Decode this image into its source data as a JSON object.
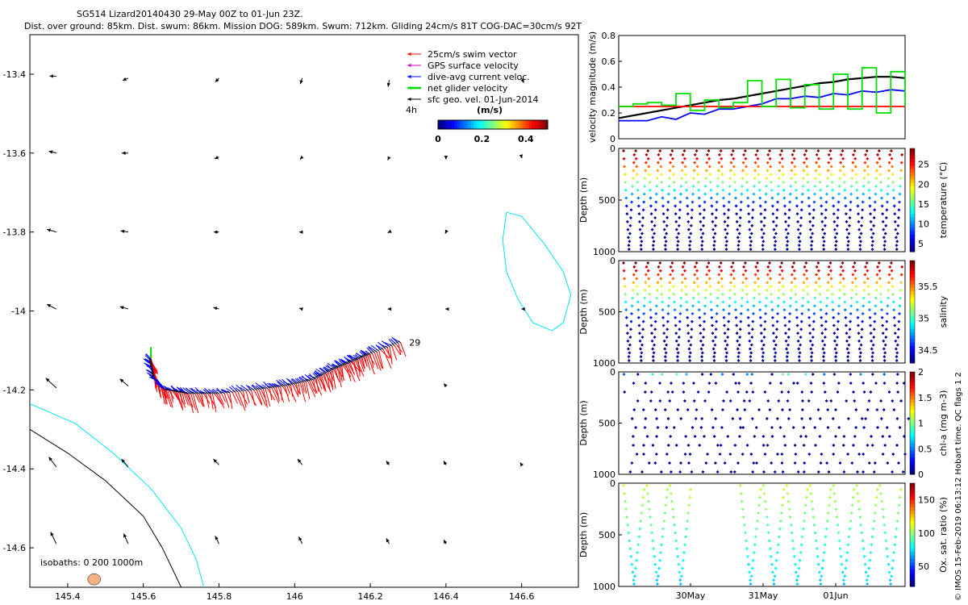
{
  "title": {
    "line1": "SG514 Lizard20140430 29-May 00Z to 01-Jun 23Z.",
    "line2": "Dist. over ground: 85km. Dist. swum: 86km. Mission DOG: 589km. Swum: 712km. Gliding 24cm/s 81T COG-DAC=30cm/s 92T"
  },
  "credit": "© IMOS 15-Feb-2019 06:13:12 Hobart time. QC flags 1  2",
  "colors": {
    "swim": "#ff0000",
    "gps": "#d000d0",
    "dac": "#0000ff",
    "net": "#00e000",
    "geo": "#000000",
    "isobath200": "#000000",
    "isobath1000": "#00e5ee",
    "reef": "#f4b183"
  },
  "chart_data": [
    {
      "type": "map",
      "name": "glider-track-map",
      "xlim": [
        145.3,
        146.75
      ],
      "ylim": [
        -14.7,
        -13.3
      ],
      "xticks": [
        145.4,
        145.6,
        145.8,
        146,
        146.2,
        146.4,
        146.6
      ],
      "xtick_labels": [
        "145.4",
        "145.6",
        "145.8",
        "146",
        "146.2",
        "146.4",
        "146.6"
      ],
      "yticks": [
        -13.4,
        -13.6,
        -13.8,
        -14,
        -14.2,
        -14.4,
        -14.6
      ],
      "ytick_labels": [
        "-13.4",
        "-13.6",
        "-13.8",
        "-14",
        "-14.2",
        "-14.4",
        "-14.6"
      ],
      "legend": {
        "entries": [
          {
            "label": "25cm/s swim vector",
            "key": "swim"
          },
          {
            "label": "GPS surface velocity",
            "key": "gps"
          },
          {
            "label": "dive-avg current veloc.",
            "key": "dac"
          },
          {
            "label": "net glider velocity",
            "key": "net"
          },
          {
            "label": "sfc geo. vel. 01-Jun-2014",
            "key": "geo"
          }
        ],
        "placement": "top-right"
      },
      "colorbar": {
        "label": "(m/s)",
        "prefix": "4h",
        "ticks": [
          "0",
          "0.2",
          "0.4"
        ],
        "range": [
          0,
          0.5
        ]
      },
      "isobaths_label": "isobaths: 0   200  1000m",
      "end_label": "29",
      "track": [
        [
          145.62,
          -14.12
        ],
        [
          145.63,
          -14.17
        ],
        [
          145.66,
          -14.2
        ],
        [
          145.72,
          -14.21
        ],
        [
          145.8,
          -14.21
        ],
        [
          145.9,
          -14.2
        ],
        [
          145.98,
          -14.19
        ],
        [
          146.05,
          -14.175
        ],
        [
          146.1,
          -14.15
        ],
        [
          146.15,
          -14.13
        ],
        [
          146.2,
          -14.11
        ],
        [
          146.28,
          -14.08
        ]
      ],
      "geo_vectors": [
        [
          145.37,
          -13.405,
          -0.018,
          0.0
        ],
        [
          145.56,
          -13.41,
          -0.015,
          -0.006
        ],
        [
          145.8,
          -13.41,
          -0.01,
          -0.01
        ],
        [
          146.02,
          -13.41,
          -0.005,
          -0.015
        ],
        [
          146.25,
          -13.415,
          -0.003,
          -0.017
        ],
        [
          146.6,
          -13.41,
          0.006,
          -0.012
        ],
        [
          145.37,
          -13.6,
          -0.02,
          0.005
        ],
        [
          145.56,
          -13.6,
          -0.017,
          0.0
        ],
        [
          145.8,
          -13.61,
          -0.012,
          -0.004
        ],
        [
          146.02,
          -13.61,
          -0.006,
          -0.006
        ],
        [
          146.25,
          -13.61,
          -0.004,
          -0.008
        ],
        [
          146.4,
          -13.61,
          0.0,
          -0.006
        ],
        [
          146.6,
          -13.61,
          0.001,
          -0.003
        ],
        [
          145.37,
          -13.8,
          -0.025,
          0.007
        ],
        [
          145.56,
          -13.8,
          -0.02,
          0.003
        ],
        [
          145.8,
          -13.8,
          -0.014,
          0.0
        ],
        [
          146.02,
          -13.8,
          -0.008,
          0.0
        ],
        [
          146.25,
          -13.8,
          -0.004,
          -0.002
        ],
        [
          146.4,
          -13.8,
          -0.002,
          -0.004
        ],
        [
          145.37,
          -13.995,
          -0.025,
          0.012
        ],
        [
          145.56,
          -13.995,
          -0.022,
          0.006
        ],
        [
          145.8,
          -13.995,
          -0.015,
          0.004
        ],
        [
          146.02,
          -13.995,
          -0.008,
          0.002
        ],
        [
          146.25,
          -13.995,
          -0.004,
          0.0
        ],
        [
          146.4,
          -13.995,
          -0.002,
          0.0
        ],
        [
          146.6,
          -13.995,
          -0.001,
          0.0
        ],
        [
          145.37,
          -14.195,
          -0.028,
          0.025
        ],
        [
          145.56,
          -14.19,
          -0.022,
          0.018
        ],
        [
          146.4,
          -14.19,
          -0.006,
          0.006
        ],
        [
          145.37,
          -14.395,
          -0.02,
          0.025
        ],
        [
          145.56,
          -14.395,
          -0.018,
          0.02
        ],
        [
          145.8,
          -14.39,
          -0.015,
          0.015
        ],
        [
          146.02,
          -14.39,
          -0.012,
          0.015
        ],
        [
          146.25,
          -14.39,
          -0.008,
          0.01
        ],
        [
          146.4,
          -14.39,
          -0.006,
          0.01
        ],
        [
          146.6,
          -14.39,
          -0.004,
          0.006
        ],
        [
          145.37,
          -14.59,
          -0.015,
          0.03
        ],
        [
          145.56,
          -14.59,
          -0.012,
          0.026
        ],
        [
          145.8,
          -14.59,
          -0.01,
          0.02
        ],
        [
          146.02,
          -14.59,
          -0.009,
          0.018
        ],
        [
          146.25,
          -14.59,
          -0.008,
          0.014
        ],
        [
          146.4,
          -14.59,
          -0.006,
          0.01
        ]
      ],
      "isobath_200": [
        [
          145.3,
          -14.3
        ],
        [
          145.4,
          -14.36
        ],
        [
          145.5,
          -14.43
        ],
        [
          145.6,
          -14.52
        ],
        [
          145.65,
          -14.6
        ],
        [
          145.7,
          -14.7
        ]
      ],
      "isobath_1000": [
        [
          145.3,
          -14.235
        ],
        [
          145.42,
          -14.285
        ],
        [
          145.52,
          -14.36
        ],
        [
          145.62,
          -14.45
        ],
        [
          145.7,
          -14.55
        ],
        [
          145.74,
          -14.63
        ],
        [
          145.76,
          -14.7
        ]
      ],
      "reef_1000": [
        [
          146.56,
          -13.75
        ],
        [
          146.6,
          -13.76
        ],
        [
          146.66,
          -13.83
        ],
        [
          146.71,
          -13.9
        ],
        [
          146.73,
          -13.96
        ],
        [
          146.71,
          -14.03
        ],
        [
          146.68,
          -14.05
        ],
        [
          146.63,
          -14.03
        ],
        [
          146.59,
          -13.97
        ],
        [
          146.56,
          -13.9
        ],
        [
          146.55,
          -13.82
        ],
        [
          146.56,
          -13.75
        ]
      ],
      "island": [
        145.47,
        -14.68
      ]
    },
    {
      "type": "line",
      "name": "velocity-panel",
      "ylabel": "velocity magnitude (m/s)",
      "ylim": [
        0,
        0.8
      ],
      "yticks": [
        "0",
        "0.2",
        "0.4",
        "0.6",
        "0.8"
      ],
      "x": [
        0,
        0.05,
        0.1,
        0.15,
        0.2,
        0.25,
        0.3,
        0.35,
        0.4,
        0.45,
        0.5,
        0.55,
        0.6,
        0.65,
        0.7,
        0.75,
        0.8,
        0.85,
        0.9,
        0.95,
        1.0
      ],
      "series": [
        {
          "name": "sfc geo",
          "key": "geo",
          "values": [
            0.16,
            0.18,
            0.2,
            0.22,
            0.24,
            0.26,
            0.28,
            0.3,
            0.31,
            0.33,
            0.35,
            0.37,
            0.39,
            0.41,
            0.43,
            0.44,
            0.46,
            0.47,
            0.48,
            0.48,
            0.47
          ]
        },
        {
          "name": "dive-avg",
          "key": "dac",
          "values": [
            0.14,
            0.14,
            0.14,
            0.17,
            0.15,
            0.2,
            0.19,
            0.23,
            0.23,
            0.25,
            0.27,
            0.31,
            0.31,
            0.33,
            0.32,
            0.35,
            0.34,
            0.37,
            0.36,
            0.38,
            0.37
          ]
        },
        {
          "name": "swim",
          "key": "swim",
          "values": [
            0.25,
            0.25,
            0.25,
            0.25,
            0.25,
            0.25,
            0.25,
            0.25,
            0.25,
            0.25,
            0.25,
            0.25,
            0.25,
            0.25,
            0.25,
            0.25,
            0.25,
            0.25,
            0.25,
            0.25,
            0.25
          ]
        },
        {
          "name": "net glider",
          "key": "net",
          "values": [
            0.25,
            0.27,
            0.28,
            0.26,
            0.35,
            0.22,
            0.3,
            0.24,
            0.28,
            0.45,
            0.25,
            0.46,
            0.24,
            0.42,
            0.23,
            0.5,
            0.23,
            0.55,
            0.2,
            0.52,
            0.25
          ]
        }
      ]
    },
    {
      "type": "scatter",
      "name": "temperature-panel",
      "ylabel": "Depth (m)",
      "cbar_label": "temperature (°C)",
      "yticks": [
        "0",
        "500",
        "1000"
      ],
      "cbar_ticks": [
        "25",
        "20",
        "15",
        "10",
        "5"
      ],
      "cbar_range": [
        3,
        29
      ],
      "profiles": 23,
      "max_depth": 1000,
      "top": 28,
      "bottom": 4
    },
    {
      "type": "scatter",
      "name": "salinity-panel",
      "ylabel": "Depth (m)",
      "cbar_label": "salinity",
      "yticks": [
        "0",
        "500",
        "1000"
      ],
      "cbar_ticks": [
        "35.5",
        "35",
        "34.5"
      ],
      "cbar_range": [
        34.3,
        35.9
      ],
      "profiles": 23,
      "max_depth": 1000,
      "top": 35.9,
      "bottom": 34.4
    },
    {
      "type": "scatter",
      "name": "chla-panel",
      "ylabel": "Depth (m)",
      "cbar_label": "chl-a (mg m-3)",
      "yticks": [
        "0",
        "500",
        "1000"
      ],
      "cbar_ticks": [
        "2",
        "1.5",
        "1",
        "0.5",
        "0"
      ],
      "cbar_range": [
        0,
        2
      ],
      "profiles": 24,
      "max_depth": 1000
    },
    {
      "type": "scatter",
      "name": "oxygen-panel",
      "ylabel": "Depth (m)",
      "cbar_label": "Ox. sat. ratio (%)",
      "yticks": [
        "0",
        "500",
        "1000"
      ],
      "cbar_ticks": [
        "150",
        "100",
        "50"
      ],
      "cbar_range": [
        20,
        175
      ],
      "profiles": 12,
      "max_depth": 1000,
      "top": 130,
      "bottom": 75,
      "xtick_labels": [
        "30May",
        "31May",
        "01Jun"
      ]
    }
  ]
}
